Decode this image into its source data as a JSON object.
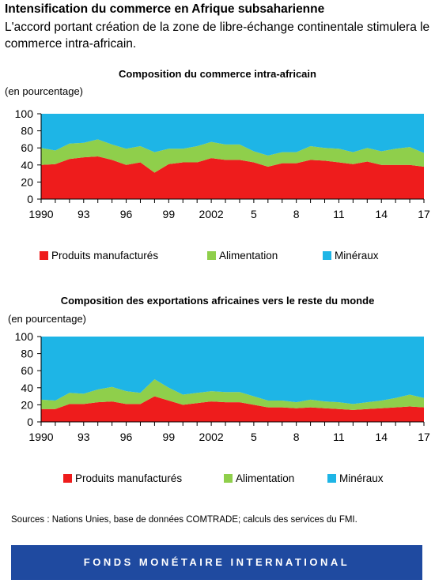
{
  "header": {
    "title": "Intensification du commerce en Afrique subsaharienne",
    "subtitle": "L'accord portant création de la zone de libre-échange continentale stimulera le commerce intra-africain."
  },
  "colors": {
    "manufactures": "#ee1c1c",
    "alimentation": "#8fcf4b",
    "mineraux": "#1eb5e6",
    "footer": "#1f4aa0"
  },
  "chart_data": [
    {
      "type": "area",
      "stacked": true,
      "title": "Composition du commerce intra-africain",
      "ylabel": "(en pourcentage)",
      "ylim": [
        0,
        100
      ],
      "yticks": [
        0,
        20,
        40,
        60,
        80,
        100
      ],
      "x": [
        1990,
        1991,
        1992,
        1993,
        1994,
        1995,
        1996,
        1997,
        1998,
        1999,
        2000,
        2001,
        2002,
        2003,
        2004,
        2005,
        2006,
        2007,
        2008,
        2009,
        2010,
        2011,
        2012,
        2013,
        2014,
        2015,
        2016,
        2017
      ],
      "xticks": [
        {
          "x": 1990,
          "label": "1990"
        },
        {
          "x": 1993,
          "label": "93"
        },
        {
          "x": 1996,
          "label": "96"
        },
        {
          "x": 1999,
          "label": "99"
        },
        {
          "x": 2002,
          "label": "2002"
        },
        {
          "x": 2005,
          "label": "5"
        },
        {
          "x": 2008,
          "label": "8"
        },
        {
          "x": 2011,
          "label": "11"
        },
        {
          "x": 2014,
          "label": "14"
        },
        {
          "x": 2017,
          "label": "17"
        }
      ],
      "legend_position": "bottom",
      "series": [
        {
          "name": "Produits manufacturés",
          "values": [
            40,
            41,
            47,
            49,
            50,
            46,
            40,
            43,
            31,
            41,
            43,
            43,
            48,
            46,
            46,
            43,
            38,
            42,
            42,
            46,
            45,
            43,
            41,
            44,
            40,
            40,
            40,
            38
          ]
        },
        {
          "name": "Alimentation",
          "values": [
            20,
            16,
            18,
            17,
            20,
            18,
            19,
            19,
            24,
            18,
            16,
            19,
            19,
            18,
            18,
            13,
            13,
            13,
            13,
            16,
            15,
            16,
            14,
            16,
            16,
            19,
            21,
            16
          ]
        },
        {
          "name": "Minéraux",
          "values": [
            40,
            43,
            35,
            34,
            30,
            36,
            41,
            38,
            45,
            41,
            41,
            38,
            33,
            36,
            36,
            44,
            49,
            45,
            45,
            38,
            40,
            41,
            45,
            40,
            44,
            41,
            39,
            46
          ]
        }
      ]
    },
    {
      "type": "area",
      "stacked": true,
      "title": "Composition des exportations africaines vers le reste du monde",
      "ylabel": "(en pourcentage)",
      "ylim": [
        0,
        100
      ],
      "yticks": [
        0,
        20,
        40,
        60,
        80,
        100
      ],
      "x": [
        1990,
        1991,
        1992,
        1993,
        1994,
        1995,
        1996,
        1997,
        1998,
        1999,
        2000,
        2001,
        2002,
        2003,
        2004,
        2005,
        2006,
        2007,
        2008,
        2009,
        2010,
        2011,
        2012,
        2013,
        2014,
        2015,
        2016,
        2017
      ],
      "xticks": [
        {
          "x": 1990,
          "label": "1990"
        },
        {
          "x": 1993,
          "label": "93"
        },
        {
          "x": 1996,
          "label": "96"
        },
        {
          "x": 1999,
          "label": "99"
        },
        {
          "x": 2002,
          "label": "2002"
        },
        {
          "x": 2005,
          "label": "5"
        },
        {
          "x": 2008,
          "label": "8"
        },
        {
          "x": 2011,
          "label": "11"
        },
        {
          "x": 2014,
          "label": "14"
        },
        {
          "x": 2017,
          "label": "17"
        }
      ],
      "legend_position": "bottom",
      "series": [
        {
          "name": "Produits manufacturés",
          "values": [
            15,
            15,
            21,
            21,
            23,
            24,
            21,
            21,
            30,
            25,
            20,
            22,
            24,
            23,
            23,
            20,
            17,
            17,
            16,
            17,
            16,
            15,
            14,
            15,
            16,
            17,
            18,
            17
          ]
        },
        {
          "name": "Alimentation",
          "values": [
            11,
            10,
            13,
            12,
            15,
            17,
            15,
            13,
            20,
            15,
            12,
            12,
            12,
            12,
            12,
            10,
            8,
            8,
            7,
            9,
            8,
            8,
            7,
            8,
            9,
            11,
            14,
            11
          ]
        },
        {
          "name": "Minéraux",
          "values": [
            74,
            75,
            66,
            67,
            62,
            59,
            64,
            66,
            50,
            60,
            68,
            66,
            64,
            65,
            65,
            70,
            75,
            75,
            77,
            74,
            76,
            77,
            79,
            77,
            75,
            72,
            68,
            72
          ]
        }
      ]
    }
  ],
  "sources": "Sources : Nations Unies, base de données COMTRADE; calculs des services du FMI.",
  "footer": {
    "label": "FONDS MONÉTAIRE INTERNATIONAL"
  }
}
